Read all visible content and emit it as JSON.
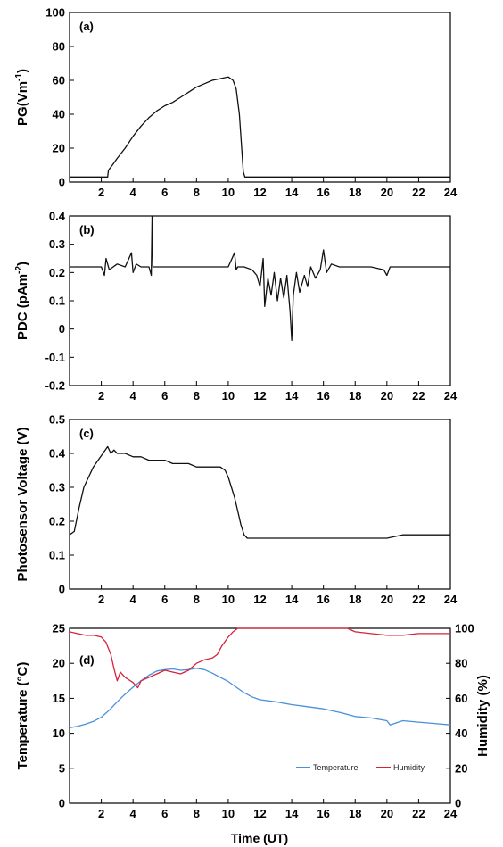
{
  "chart_data": [
    {
      "type": "line",
      "panel_label": "(a)",
      "ylabel": "PG(Vm",
      "ylabel_sup": "-1",
      "ylabel_end": ")",
      "xlim": [
        0,
        24
      ],
      "ylim": [
        0,
        100
      ],
      "yticks": [
        "0",
        "20",
        "40",
        "60",
        "80",
        "100"
      ],
      "xticks": [
        "2",
        "4",
        "6",
        "8",
        "10",
        "12",
        "14",
        "16",
        "18",
        "20",
        "22",
        "24"
      ],
      "colors": {
        "line": "#111111"
      },
      "series": [
        {
          "x": [
            0,
            2.4,
            2.45,
            2.7,
            3,
            3.5,
            4,
            4.5,
            5,
            5.5,
            6,
            6.5,
            7,
            7.5,
            8,
            8.5,
            9,
            9.5,
            10,
            10.3,
            10.5,
            10.7,
            10.85,
            10.95,
            11.05,
            12,
            14,
            16,
            18,
            20,
            22,
            24
          ],
          "y": [
            3,
            3,
            7,
            10,
            14,
            20,
            27,
            33,
            38,
            42,
            45,
            47,
            50,
            53,
            56,
            58,
            60,
            61,
            62,
            60,
            55,
            40,
            20,
            6,
            3,
            3,
            3,
            3,
            3,
            3,
            3,
            3
          ]
        }
      ]
    },
    {
      "type": "line",
      "panel_label": "(b)",
      "ylabel": "PDC (pAm",
      "ylabel_sup": "-2",
      "ylabel_end": ")",
      "xlim": [
        0,
        24
      ],
      "ylim": [
        -0.2,
        0.4
      ],
      "yticks": [
        "-0.2",
        "-0.1",
        "0",
        "0.1",
        "0.2",
        "0.3",
        "0.4"
      ],
      "xticks": [
        "2",
        "4",
        "6",
        "8",
        "10",
        "12",
        "14",
        "16",
        "18",
        "20",
        "22",
        "24"
      ],
      "colors": {
        "line": "#111111"
      },
      "series": [
        {
          "x": [
            0,
            1,
            2,
            2.2,
            2.3,
            2.5,
            3,
            3.5,
            3.9,
            4.0,
            4.2,
            4.5,
            5,
            5.15,
            5.2,
            5.25,
            5.4,
            6,
            7,
            8,
            9,
            10,
            10.4,
            10.5,
            10.6,
            11,
            11.5,
            11.8,
            12,
            12.2,
            12.3,
            12.5,
            12.7,
            12.9,
            13.1,
            13.3,
            13.5,
            13.7,
            13.9,
            14.0,
            14.1,
            14.3,
            14.5,
            14.8,
            15,
            15.2,
            15.5,
            15.8,
            16,
            16.2,
            16.5,
            17,
            18,
            19,
            19.8,
            20,
            20.2,
            21,
            22,
            23,
            24
          ],
          "y": [
            0.22,
            0.22,
            0.22,
            0.19,
            0.25,
            0.21,
            0.23,
            0.22,
            0.27,
            0.2,
            0.23,
            0.22,
            0.22,
            0.19,
            0.4,
            0.22,
            0.22,
            0.22,
            0.22,
            0.22,
            0.22,
            0.22,
            0.27,
            0.21,
            0.22,
            0.22,
            0.21,
            0.19,
            0.15,
            0.25,
            0.08,
            0.18,
            0.12,
            0.2,
            0.1,
            0.18,
            0.11,
            0.19,
            0.06,
            -0.04,
            0.12,
            0.2,
            0.13,
            0.19,
            0.15,
            0.22,
            0.18,
            0.21,
            0.28,
            0.2,
            0.23,
            0.22,
            0.22,
            0.22,
            0.21,
            0.19,
            0.22,
            0.22,
            0.22,
            0.22,
            0.22
          ]
        }
      ]
    },
    {
      "type": "line",
      "panel_label": "(c)",
      "ylabel": "Photosensor Voltage (V)",
      "xlim": [
        0,
        24
      ],
      "ylim": [
        0,
        0.5
      ],
      "yticks": [
        "0",
        "0.1",
        "0.2",
        "0.3",
        "0.4",
        "0.5"
      ],
      "xticks": [
        "2",
        "4",
        "6",
        "8",
        "10",
        "12",
        "14",
        "16",
        "18",
        "20",
        "22",
        "24"
      ],
      "colors": {
        "line": "#111111"
      },
      "series": [
        {
          "x": [
            0,
            0.3,
            0.6,
            0.9,
            1.2,
            1.5,
            1.8,
            2.1,
            2.4,
            2.6,
            2.8,
            3.0,
            3.5,
            4,
            4.5,
            5,
            5.5,
            6,
            6.5,
            7,
            7.5,
            8,
            8.5,
            9,
            9.5,
            9.8,
            10,
            10.2,
            10.4,
            10.6,
            10.8,
            11,
            11.2,
            11.5,
            12,
            13,
            14,
            15,
            16,
            17,
            18,
            19,
            20,
            21,
            22,
            23,
            24
          ],
          "y": [
            0.16,
            0.17,
            0.24,
            0.3,
            0.33,
            0.36,
            0.38,
            0.4,
            0.42,
            0.4,
            0.41,
            0.4,
            0.4,
            0.39,
            0.39,
            0.38,
            0.38,
            0.38,
            0.37,
            0.37,
            0.37,
            0.36,
            0.36,
            0.36,
            0.36,
            0.35,
            0.33,
            0.3,
            0.27,
            0.23,
            0.19,
            0.16,
            0.15,
            0.15,
            0.15,
            0.15,
            0.15,
            0.15,
            0.15,
            0.15,
            0.15,
            0.15,
            0.15,
            0.16,
            0.16,
            0.16,
            0.16
          ]
        }
      ]
    },
    {
      "type": "line",
      "panel_label": "(d)",
      "ylabel": "Temperature (°C)",
      "ylabel_right": "Humidity (%)",
      "xlabel": "Time (UT)",
      "xlim": [
        0,
        24
      ],
      "ylim": [
        0,
        25
      ],
      "ylim_right": [
        0,
        100
      ],
      "yticks": [
        "0",
        "5",
        "10",
        "15",
        "20",
        "25"
      ],
      "yticks_right": [
        "0",
        "20",
        "40",
        "60",
        "80",
        "100"
      ],
      "xticks": [
        "2",
        "4",
        "6",
        "8",
        "10",
        "12",
        "14",
        "16",
        "18",
        "20",
        "22",
        "24"
      ],
      "legend": {
        "placement": "bottom-right",
        "entries": [
          "Temperature",
          "Humidity"
        ]
      },
      "colors": {
        "Temperature": "#4a90d9",
        "Humidity": "#d6233b"
      },
      "series": [
        {
          "name": "Temperature",
          "axis": "left",
          "x": [
            0,
            0.5,
            1,
            1.5,
            2,
            2.5,
            3,
            3.5,
            4,
            4.5,
            5,
            5.5,
            6,
            6.5,
            7,
            7.5,
            8,
            8.5,
            9,
            9.5,
            10,
            10.5,
            11,
            11.5,
            12,
            13,
            14,
            15,
            16,
            17,
            18,
            19,
            20,
            20.2,
            21,
            22,
            23,
            24
          ],
          "y": [
            10.8,
            11,
            11.3,
            11.7,
            12.3,
            13.3,
            14.5,
            15.6,
            16.6,
            17.5,
            18.3,
            18.9,
            19.1,
            19.2,
            19.0,
            19.1,
            19.3,
            19.1,
            18.6,
            18.0,
            17.4,
            16.6,
            15.8,
            15.2,
            14.8,
            14.5,
            14.1,
            13.8,
            13.5,
            13.0,
            12.4,
            12.2,
            11.8,
            11.2,
            11.8,
            11.6,
            11.4,
            11.2
          ]
        },
        {
          "name": "Humidity",
          "axis": "right",
          "x": [
            0,
            0.5,
            1,
            1.5,
            2,
            2.3,
            2.6,
            2.8,
            3.0,
            3.2,
            3.5,
            4,
            4.3,
            4.5,
            5,
            5.5,
            6,
            6.5,
            7,
            7.5,
            8,
            8.5,
            9,
            9.3,
            9.6,
            10,
            10.3,
            10.6,
            12,
            14,
            16,
            17.5,
            18,
            19,
            20,
            21,
            22,
            23,
            24
          ],
          "y": [
            98,
            97,
            96,
            96,
            95,
            92,
            85,
            77,
            70,
            75,
            72,
            69,
            66,
            70,
            72,
            74,
            76,
            75,
            74,
            76,
            80,
            82,
            83,
            85,
            90,
            95,
            98,
            100,
            100,
            100,
            100,
            100,
            98,
            97,
            96,
            96,
            97,
            97,
            97
          ]
        }
      ]
    }
  ]
}
